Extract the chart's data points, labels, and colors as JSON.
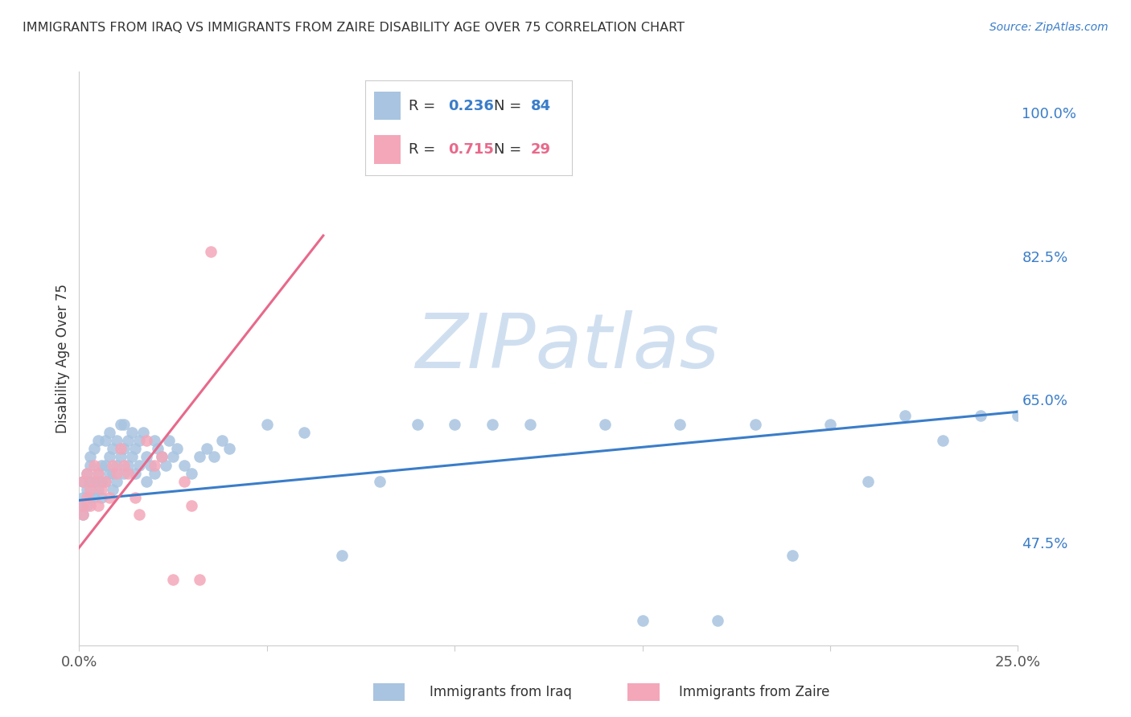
{
  "title": "IMMIGRANTS FROM IRAQ VS IMMIGRANTS FROM ZAIRE DISABILITY AGE OVER 75 CORRELATION CHART",
  "source": "Source: ZipAtlas.com",
  "ylabel": "Disability Age Over 75",
  "yticks": [
    "47.5%",
    "65.0%",
    "82.5%",
    "100.0%"
  ],
  "ytick_vals": [
    0.475,
    0.65,
    0.825,
    1.0
  ],
  "xrange": [
    0.0,
    0.25
  ],
  "yrange": [
    0.35,
    1.05
  ],
  "iraq_R": 0.236,
  "iraq_N": 84,
  "zaire_R": 0.715,
  "zaire_N": 29,
  "iraq_color": "#a8c4e0",
  "zaire_color": "#f4a7b9",
  "iraq_line_color": "#3a7dc9",
  "zaire_line_color": "#e8698a",
  "legend_label_iraq": "Immigrants from Iraq",
  "legend_label_zaire": "Immigrants from Zaire",
  "watermark": "ZIPatlas",
  "watermark_color": "#d0dff0",
  "background_color": "#ffffff",
  "grid_color": "#dddddd",
  "iraq_x": [
    0.001,
    0.001,
    0.001,
    0.001,
    0.002,
    0.002,
    0.002,
    0.003,
    0.003,
    0.003,
    0.003,
    0.004,
    0.004,
    0.004,
    0.005,
    0.005,
    0.005,
    0.006,
    0.006,
    0.006,
    0.007,
    0.007,
    0.007,
    0.008,
    0.008,
    0.008,
    0.009,
    0.009,
    0.009,
    0.01,
    0.01,
    0.01,
    0.011,
    0.011,
    0.012,
    0.012,
    0.012,
    0.013,
    0.013,
    0.014,
    0.014,
    0.015,
    0.015,
    0.016,
    0.016,
    0.017,
    0.018,
    0.018,
    0.019,
    0.02,
    0.02,
    0.021,
    0.022,
    0.023,
    0.024,
    0.025,
    0.026,
    0.028,
    0.03,
    0.032,
    0.034,
    0.036,
    0.038,
    0.04,
    0.05,
    0.06,
    0.07,
    0.08,
    0.09,
    0.1,
    0.12,
    0.14,
    0.16,
    0.18,
    0.2,
    0.22,
    0.24,
    0.25,
    0.15,
    0.17,
    0.19,
    0.21,
    0.23,
    0.11
  ],
  "iraq_y": [
    0.53,
    0.55,
    0.52,
    0.51,
    0.54,
    0.56,
    0.52,
    0.57,
    0.55,
    0.53,
    0.58,
    0.59,
    0.55,
    0.53,
    0.6,
    0.56,
    0.54,
    0.55,
    0.57,
    0.53,
    0.6,
    0.57,
    0.55,
    0.61,
    0.58,
    0.56,
    0.59,
    0.56,
    0.54,
    0.57,
    0.6,
    0.55,
    0.62,
    0.58,
    0.59,
    0.62,
    0.56,
    0.57,
    0.6,
    0.61,
    0.58,
    0.56,
    0.59,
    0.6,
    0.57,
    0.61,
    0.58,
    0.55,
    0.57,
    0.6,
    0.56,
    0.59,
    0.58,
    0.57,
    0.6,
    0.58,
    0.59,
    0.57,
    0.56,
    0.58,
    0.59,
    0.58,
    0.6,
    0.59,
    0.62,
    0.61,
    0.46,
    0.55,
    0.62,
    0.62,
    0.62,
    0.62,
    0.62,
    0.62,
    0.62,
    0.63,
    0.63,
    0.63,
    0.38,
    0.38,
    0.46,
    0.55,
    0.6,
    0.62
  ],
  "zaire_x": [
    0.001,
    0.001,
    0.001,
    0.002,
    0.002,
    0.003,
    0.003,
    0.004,
    0.004,
    0.005,
    0.005,
    0.006,
    0.007,
    0.008,
    0.009,
    0.01,
    0.011,
    0.012,
    0.013,
    0.015,
    0.016,
    0.018,
    0.02,
    0.022,
    0.025,
    0.028,
    0.03,
    0.032,
    0.035
  ],
  "zaire_y": [
    0.52,
    0.55,
    0.51,
    0.53,
    0.56,
    0.54,
    0.52,
    0.57,
    0.55,
    0.56,
    0.52,
    0.54,
    0.55,
    0.53,
    0.57,
    0.56,
    0.59,
    0.57,
    0.56,
    0.53,
    0.51,
    0.6,
    0.57,
    0.58,
    0.43,
    0.55,
    0.52,
    0.43,
    0.83
  ],
  "iraq_line_x": [
    0.0,
    0.25
  ],
  "iraq_line_y": [
    0.527,
    0.635
  ],
  "zaire_line_x": [
    -0.005,
    0.065
  ],
  "zaire_line_y": [
    0.44,
    0.85
  ]
}
